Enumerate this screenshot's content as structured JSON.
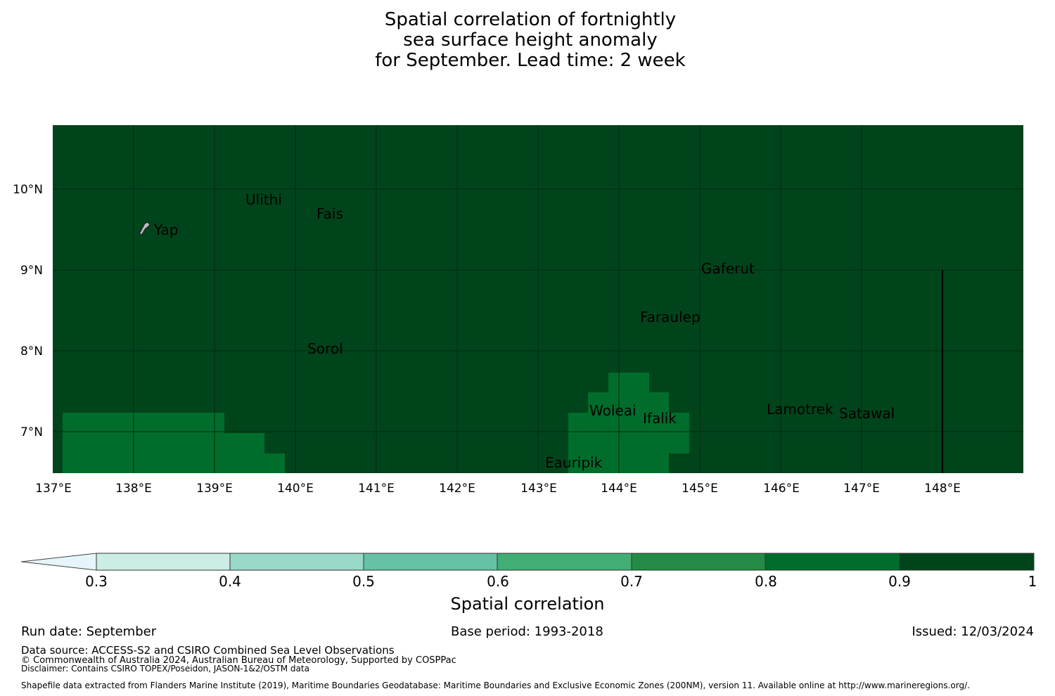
{
  "title": {
    "line1": "Spatial correlation of fortnightly",
    "line2": "sea surface height anomaly",
    "line3": "for September. Lead time: 2 week"
  },
  "map": {
    "lat_labels": [
      "10°N",
      "9°N",
      "8°N",
      "7°N"
    ],
    "lon_labels": [
      "137°E",
      "138°E",
      "139°E",
      "140°E",
      "141°E",
      "142°E",
      "143°E",
      "144°E",
      "145°E",
      "146°E",
      "147°E",
      "148°E"
    ],
    "places": [
      {
        "name": "Ulithi"
      },
      {
        "name": "Fais"
      },
      {
        "name": "Yap"
      },
      {
        "name": "Gaferut"
      },
      {
        "name": "Faraulep"
      },
      {
        "name": "Sorol"
      },
      {
        "name": "Woleai"
      },
      {
        "name": "Ifalik"
      },
      {
        "name": "Lamotrek"
      },
      {
        "name": "Satawal"
      },
      {
        "name": "Eauripik"
      }
    ],
    "background_correlation_range": "0.9-1",
    "patch_correlation_range": "0.8-0.9"
  },
  "colorbar": {
    "title": "Spatial correlation",
    "ticks": [
      "0.3",
      "0.4",
      "0.5",
      "0.6",
      "0.7",
      "0.8",
      "0.9",
      "1"
    ],
    "colors": [
      "#e5f5f9",
      "#ccece6",
      "#99d8c9",
      "#66c2a4",
      "#41ae76",
      "#238b45",
      "#006d2c",
      "#00441b"
    ]
  },
  "footer": {
    "run_date": "Run date: September",
    "base_period": "Base period: 1993-2018",
    "issued": "Issued: 12/03/2024",
    "data_source": "Data source: ACCESS-S2 and CSIRO Combined Sea Level Observations",
    "copyright": "© Commonwealth of Australia 2024, Australian Bureau of Meteorology, Supported by COSPPac",
    "disclaimer": "Disclaimer: Contains CSIRO TOPEX/Poseidon, JASON-1&2/OSTM data",
    "shapefile": "Shapefile data extracted from Flanders Marine Institute (2019), Maritime Boundaries Geodatabase: Maritime Boundaries and Exclusive Economic Zones (200NM), version 11. Available online at http://www.marineregions.org/."
  }
}
